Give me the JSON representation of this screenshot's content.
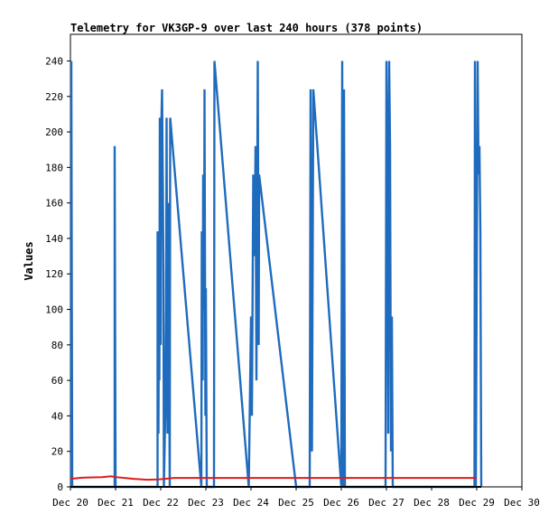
{
  "chart_data": {
    "type": "line",
    "title": "Telemetry for VK3GP-9 over last 240 hours (378 points)",
    "xlabel": "",
    "ylabel": "Values",
    "x_ticks": [
      "Dec 20",
      "Dec 21",
      "Dec 22",
      "Dec 23",
      "Dec 24",
      "Dec 25",
      "Dec 26",
      "Dec 27",
      "Dec 28",
      "Dec 29",
      "Dec 30"
    ],
    "y_ticks": [
      0,
      20,
      40,
      60,
      80,
      100,
      120,
      140,
      160,
      180,
      200,
      220,
      240
    ],
    "ylim": [
      0,
      255
    ],
    "xlim": [
      0,
      10
    ],
    "x_unit": "days since Dec 20",
    "grid": false,
    "colors": {
      "blue": "#1f6bbd",
      "red": "#e01b1b",
      "black": "#000000"
    },
    "series": [
      {
        "name": "",
        "color": "#1f6bbd",
        "points": [
          [
            0.02,
            0
          ],
          [
            0.02,
            240
          ],
          [
            0.04,
            0
          ],
          [
            0.98,
            0
          ],
          [
            0.98,
            192
          ],
          [
            1.0,
            0
          ],
          [
            1.93,
            0
          ],
          [
            1.93,
            144
          ],
          [
            1.95,
            30
          ],
          [
            1.96,
            112
          ],
          [
            1.97,
            60
          ],
          [
            1.98,
            208
          ],
          [
            2.0,
            80
          ],
          [
            2.01,
            200
          ],
          [
            2.03,
            224
          ],
          [
            2.05,
            160
          ],
          [
            2.06,
            120
          ],
          [
            2.07,
            0
          ],
          [
            2.1,
            40
          ],
          [
            2.12,
            100
          ],
          [
            2.13,
            208
          ],
          [
            2.15,
            30
          ],
          [
            2.17,
            160
          ],
          [
            2.2,
            0
          ],
          [
            2.21,
            208
          ],
          [
            2.9,
            0
          ],
          [
            2.91,
            144
          ],
          [
            2.93,
            60
          ],
          [
            2.94,
            176
          ],
          [
            2.96,
            100
          ],
          [
            2.97,
            224
          ],
          [
            2.99,
            40
          ],
          [
            3.0,
            112
          ],
          [
            3.02,
            0
          ],
          [
            3.18,
            0
          ],
          [
            3.19,
            240
          ],
          [
            3.95,
            0
          ],
          [
            4.0,
            96
          ],
          [
            4.02,
            40
          ],
          [
            4.05,
            176
          ],
          [
            4.08,
            130
          ],
          [
            4.1,
            192
          ],
          [
            4.12,
            60
          ],
          [
            4.15,
            240
          ],
          [
            4.17,
            80
          ],
          [
            4.18,
            176
          ],
          [
            5.0,
            0
          ],
          [
            5.3,
            0
          ],
          [
            5.32,
            224
          ],
          [
            5.35,
            20
          ],
          [
            5.38,
            224
          ],
          [
            6.0,
            0
          ],
          [
            6.02,
            240
          ],
          [
            6.04,
            0
          ],
          [
            6.06,
            224
          ],
          [
            6.08,
            0
          ],
          [
            6.98,
            0
          ],
          [
            7.0,
            240
          ],
          [
            7.02,
            192
          ],
          [
            7.04,
            30
          ],
          [
            7.06,
            240
          ],
          [
            7.08,
            192
          ],
          [
            7.1,
            20
          ],
          [
            7.12,
            96
          ],
          [
            7.14,
            0
          ],
          [
            8.95,
            0
          ],
          [
            8.96,
            240
          ],
          [
            8.98,
            0
          ],
          [
            9.02,
            240
          ],
          [
            9.04,
            176
          ],
          [
            9.06,
            192
          ],
          [
            9.08,
            144
          ],
          [
            9.1,
            0
          ]
        ]
      },
      {
        "name": "",
        "color": "#e01b1b",
        "points": [
          [
            0,
            4.5
          ],
          [
            0.2,
            5
          ],
          [
            0.3,
            5.2
          ],
          [
            0.7,
            5.5
          ],
          [
            0.9,
            6
          ],
          [
            1.0,
            5.5
          ],
          [
            1.2,
            5
          ],
          [
            1.4,
            4.5
          ],
          [
            1.7,
            4
          ],
          [
            1.95,
            4.2
          ],
          [
            2.3,
            5
          ],
          [
            3.0,
            5
          ],
          [
            4.0,
            5
          ],
          [
            5.0,
            5
          ],
          [
            6.0,
            5
          ],
          [
            7.0,
            5
          ],
          [
            8.0,
            5
          ],
          [
            9.0,
            5
          ]
        ]
      },
      {
        "name": "",
        "color": "#000000",
        "points": [
          [
            0,
            0
          ],
          [
            9.1,
            0
          ]
        ]
      }
    ]
  }
}
